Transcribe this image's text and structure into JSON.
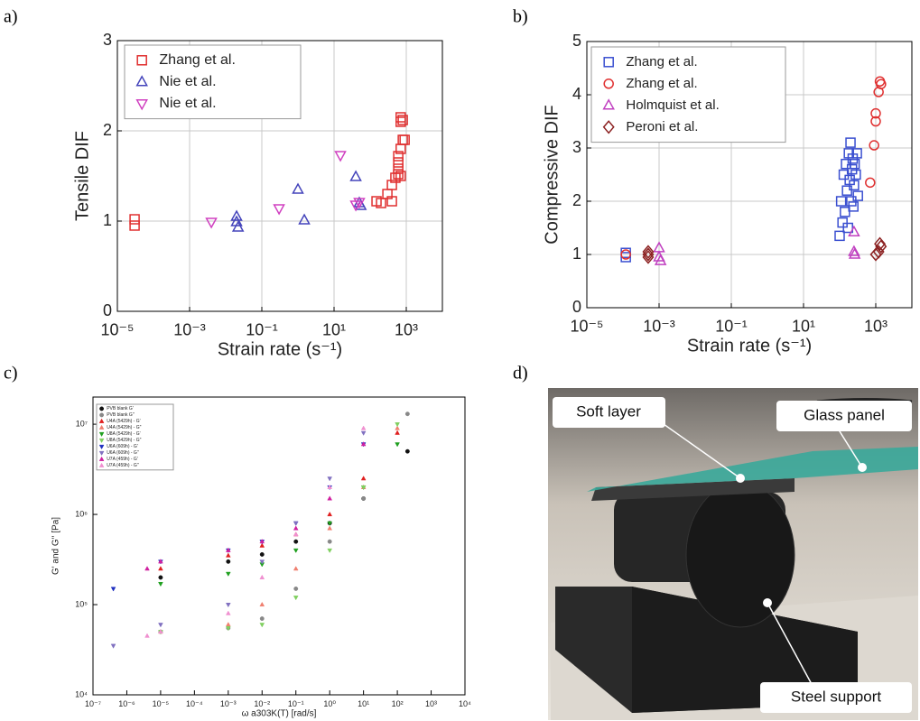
{
  "panel_labels": [
    "a)",
    "b)",
    "c)",
    "d)"
  ],
  "photo": {
    "labels": [
      "Soft layer",
      "Glass panel",
      "Steel support"
    ]
  },
  "chart_data": [
    {
      "type": "scatter",
      "xlabel": "Strain rate (s⁻¹)",
      "ylabel": "Tensile DIF",
      "xscale": "log",
      "xlim": [
        1e-05,
        10000
      ],
      "ylim": [
        0,
        3
      ],
      "grid": true,
      "legend": "upper left",
      "xticks": [
        {
          "value": 1e-05,
          "label": "10⁻⁵"
        },
        {
          "value": 0.001,
          "label": "10⁻³"
        },
        {
          "value": 0.1,
          "label": "10⁻¹"
        },
        {
          "value": 10,
          "label": "10¹"
        },
        {
          "value": 1000,
          "label": "10³"
        }
      ],
      "yticks": [
        0,
        1,
        2,
        3
      ],
      "series": [
        {
          "name": "Zhang et al.",
          "color": "#e03030",
          "marker": "square",
          "x": [
            3e-05,
            3e-05,
            150,
            200,
            300,
            400,
            400,
            500,
            600,
            600,
            600,
            600,
            700,
            700,
            700,
            700,
            800,
            800,
            900
          ],
          "values": [
            0.95,
            1.02,
            1.22,
            1.2,
            1.3,
            1.22,
            1.4,
            1.48,
            1.52,
            1.58,
            1.65,
            1.72,
            1.5,
            1.8,
            2.1,
            2.15,
            1.9,
            2.12,
            1.9
          ]
        },
        {
          "name": "Nie et al.",
          "color": "#4444bb",
          "marker": "triangle-up",
          "x": [
            0.02,
            0.02,
            0.022,
            1,
            1.5,
            40,
            50,
            55
          ],
          "values": [
            1.05,
            0.99,
            0.93,
            1.35,
            1.01,
            1.49,
            1.2,
            1.17
          ]
        },
        {
          "name": "Nie et al.",
          "color": "#d040c0",
          "marker": "triangle-down",
          "x": [
            0.004,
            0.3,
            15,
            40,
            50
          ],
          "values": [
            0.99,
            1.14,
            1.73,
            1.18,
            1.21
          ]
        }
      ]
    },
    {
      "type": "scatter",
      "xlabel": "Strain rate (s⁻¹)",
      "ylabel": "Compressive DIF",
      "xscale": "log",
      "xlim": [
        1e-05,
        10000
      ],
      "ylim": [
        0,
        5
      ],
      "grid": true,
      "legend": "upper left",
      "xticks": [
        {
          "value": 1e-05,
          "label": "10⁻⁵"
        },
        {
          "value": 0.001,
          "label": "10⁻³"
        },
        {
          "value": 0.1,
          "label": "10⁻¹"
        },
        {
          "value": 10,
          "label": "10¹"
        },
        {
          "value": 1000,
          "label": "10³"
        }
      ],
      "yticks": [
        0,
        1,
        2,
        3,
        4,
        5
      ],
      "series": [
        {
          "name": "Zhang et al.",
          "color": "#3a4fd0",
          "marker": "square",
          "x": [
            0.00012,
            0.00012,
            100,
            110,
            120,
            130,
            140,
            150,
            160,
            170,
            180,
            190,
            200,
            210,
            220,
            230,
            240,
            250,
            260,
            280,
            300,
            320
          ],
          "values": [
            0.95,
            1.03,
            1.35,
            2.0,
            1.6,
            2.5,
            1.8,
            2.7,
            2.2,
            1.5,
            2.9,
            2.4,
            3.1,
            2.0,
            2.6,
            2.8,
            1.9,
            2.3,
            2.7,
            2.5,
            2.9,
            2.1
          ]
        },
        {
          "name": "Zhang et al.",
          "color": "#e03030",
          "marker": "circle",
          "x": [
            0.00012,
            700,
            900,
            1000,
            1000,
            1200,
            1300,
            1400
          ],
          "values": [
            1.0,
            2.35,
            3.05,
            3.5,
            3.65,
            4.05,
            4.25,
            4.2
          ]
        },
        {
          "name": "Holmquist et al.",
          "color": "#c040c0",
          "marker": "triangle-up",
          "x": [
            0.001,
            0.001,
            0.0011,
            250,
            260,
            250
          ],
          "values": [
            1.12,
            0.95,
            0.88,
            1.05,
            1.0,
            1.42
          ]
        },
        {
          "name": "Peroni et al.",
          "color": "#8b2020",
          "marker": "diamond",
          "x": [
            0.0005,
            0.0005,
            0.0005,
            1000,
            1200,
            1300,
            1400
          ],
          "values": [
            1.05,
            1.0,
            0.95,
            1.0,
            1.05,
            1.2,
            1.15
          ]
        }
      ]
    },
    {
      "type": "scatter",
      "xlabel": "ω a303K(T) [rad/s]",
      "ylabel": "G' and G'' [Pa]",
      "xscale": "log",
      "yscale": "log",
      "xlim": [
        1e-07,
        10000
      ],
      "ylim": [
        10000,
        20000000
      ],
      "grid": false,
      "legend": "upper left",
      "filled_markers": true,
      "xticks": [
        {
          "value": 1e-07,
          "label": "10⁻⁷"
        },
        {
          "value": 1e-06,
          "label": "10⁻⁶"
        },
        {
          "value": 1e-05,
          "label": "10⁻⁵"
        },
        {
          "value": 0.0001,
          "label": "10⁻⁴"
        },
        {
          "value": 0.001,
          "label": "10⁻³"
        },
        {
          "value": 0.01,
          "label": "10⁻²"
        },
        {
          "value": 0.1,
          "label": "10⁻¹"
        },
        {
          "value": 1,
          "label": "10⁰"
        },
        {
          "value": 10,
          "label": "10¹"
        },
        {
          "value": 100,
          "label": "10²"
        },
        {
          "value": 1000,
          "label": "10³"
        },
        {
          "value": 10000,
          "label": "10⁴"
        }
      ],
      "yticks": [
        {
          "value": 10000,
          "label": "10⁴"
        },
        {
          "value": 100000,
          "label": "10⁵"
        },
        {
          "value": 1000000,
          "label": "10⁶"
        },
        {
          "value": 10000000,
          "label": "10⁷"
        }
      ],
      "series": [
        {
          "name": "PVB blank G'",
          "color": "#111111",
          "marker": "circle",
          "x": [
            1e-05,
            0.001,
            0.01,
            0.1,
            1,
            10,
            200
          ],
          "values": [
            200000,
            300000,
            360000,
            500000,
            800000,
            1500000,
            5000000
          ]
        },
        {
          "name": "PVB blank G''",
          "color": "#888888",
          "marker": "circle",
          "x": [
            1e-05,
            0.001,
            0.01,
            0.1,
            1,
            10,
            200
          ],
          "values": [
            50000,
            55000,
            70000,
            150000,
            500000,
            1500000,
            13000000
          ]
        },
        {
          "name": "U4A (5429h) - G'",
          "color": "#e02020",
          "marker": "triangle-up",
          "x": [
            1e-05,
            0.001,
            0.01,
            0.1,
            1,
            10,
            100
          ],
          "values": [
            250000,
            350000,
            450000,
            600000,
            1000000,
            2500000,
            8000000
          ]
        },
        {
          "name": "U4A (5429h) - G''",
          "color": "#f08070",
          "marker": "triangle-up",
          "x": [
            1e-05,
            0.001,
            0.01,
            0.1,
            1,
            10,
            100
          ],
          "values": [
            50000,
            60000,
            100000,
            250000,
            700000,
            2000000,
            9000000
          ]
        },
        {
          "name": "U8A (5429h) - G'",
          "color": "#20a020",
          "marker": "triangle-down",
          "x": [
            1e-05,
            0.001,
            0.01,
            0.1,
            1,
            10,
            100
          ],
          "values": [
            170000,
            220000,
            280000,
            400000,
            800000,
            2000000,
            6000000
          ]
        },
        {
          "name": "U8A (5429h) - G''",
          "color": "#80d060",
          "marker": "triangle-down",
          "x": [
            1e-05,
            0.001,
            0.01,
            0.1,
            1,
            10,
            100
          ],
          "values": [
            50000,
            55000,
            60000,
            120000,
            400000,
            2000000,
            10000000
          ]
        },
        {
          "name": "U6A (609h) - G'",
          "color": "#2030c0",
          "marker": "triangle-down",
          "x": [
            4e-07,
            1e-05,
            0.001,
            0.01,
            0.1,
            1,
            10
          ],
          "values": [
            150000,
            300000,
            400000,
            500000,
            800000,
            2000000,
            6000000
          ]
        },
        {
          "name": "U6A (609h) - G''",
          "color": "#8070c0",
          "marker": "triangle-down",
          "x": [
            4e-07,
            1e-05,
            0.001,
            0.01,
            0.1,
            1,
            10
          ],
          "values": [
            35000,
            60000,
            100000,
            300000,
            800000,
            2500000,
            8000000
          ]
        },
        {
          "name": "U7A (459h) - G'",
          "color": "#d020a0",
          "marker": "triangle-up",
          "x": [
            4e-06,
            1e-05,
            0.001,
            0.01,
            0.1,
            1,
            10
          ],
          "values": [
            250000,
            300000,
            400000,
            500000,
            700000,
            1500000,
            6000000
          ]
        },
        {
          "name": "U7A (459h) - G''",
          "color": "#f090d0",
          "marker": "triangle-up",
          "x": [
            4e-06,
            1e-05,
            0.001,
            0.01,
            0.1,
            1,
            10
          ],
          "values": [
            45000,
            50000,
            80000,
            200000,
            600000,
            2000000,
            9000000
          ]
        }
      ]
    }
  ]
}
